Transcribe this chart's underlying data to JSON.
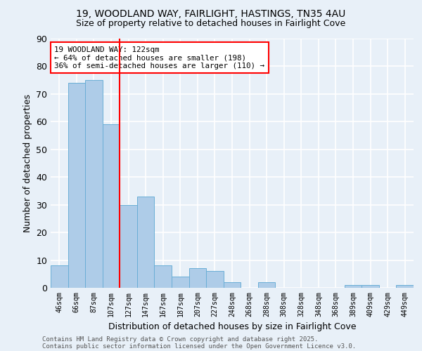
{
  "title1": "19, WOODLAND WAY, FAIRLIGHT, HASTINGS, TN35 4AU",
  "title2": "Size of property relative to detached houses in Fairlight Cove",
  "xlabel": "Distribution of detached houses by size in Fairlight Cove",
  "ylabel": "Number of detached properties",
  "bins": [
    "46sqm",
    "66sqm",
    "87sqm",
    "107sqm",
    "127sqm",
    "147sqm",
    "167sqm",
    "187sqm",
    "207sqm",
    "227sqm",
    "248sqm",
    "268sqm",
    "288sqm",
    "308sqm",
    "328sqm",
    "348sqm",
    "368sqm",
    "389sqm",
    "409sqm",
    "429sqm",
    "449sqm"
  ],
  "values": [
    8,
    74,
    75,
    59,
    30,
    33,
    8,
    4,
    7,
    6,
    2,
    0,
    2,
    0,
    0,
    0,
    0,
    1,
    1,
    0,
    1
  ],
  "bar_color": "#aecce8",
  "bar_edge_color": "#6aaed6",
  "vline_color": "red",
  "annotation_text": "19 WOODLAND WAY: 122sqm\n← 64% of detached houses are smaller (198)\n36% of semi-detached houses are larger (110) →",
  "annotation_box_color": "white",
  "annotation_box_edge": "red",
  "ylim": [
    0,
    90
  ],
  "yticks": [
    0,
    10,
    20,
    30,
    40,
    50,
    60,
    70,
    80,
    90
  ],
  "footer1": "Contains HM Land Registry data © Crown copyright and database right 2025.",
  "footer2": "Contains public sector information licensed under the Open Government Licence v3.0.",
  "bg_color": "#e8f0f8",
  "grid_color": "white",
  "fig_width": 6.0,
  "fig_height": 5.0,
  "dpi": 100
}
